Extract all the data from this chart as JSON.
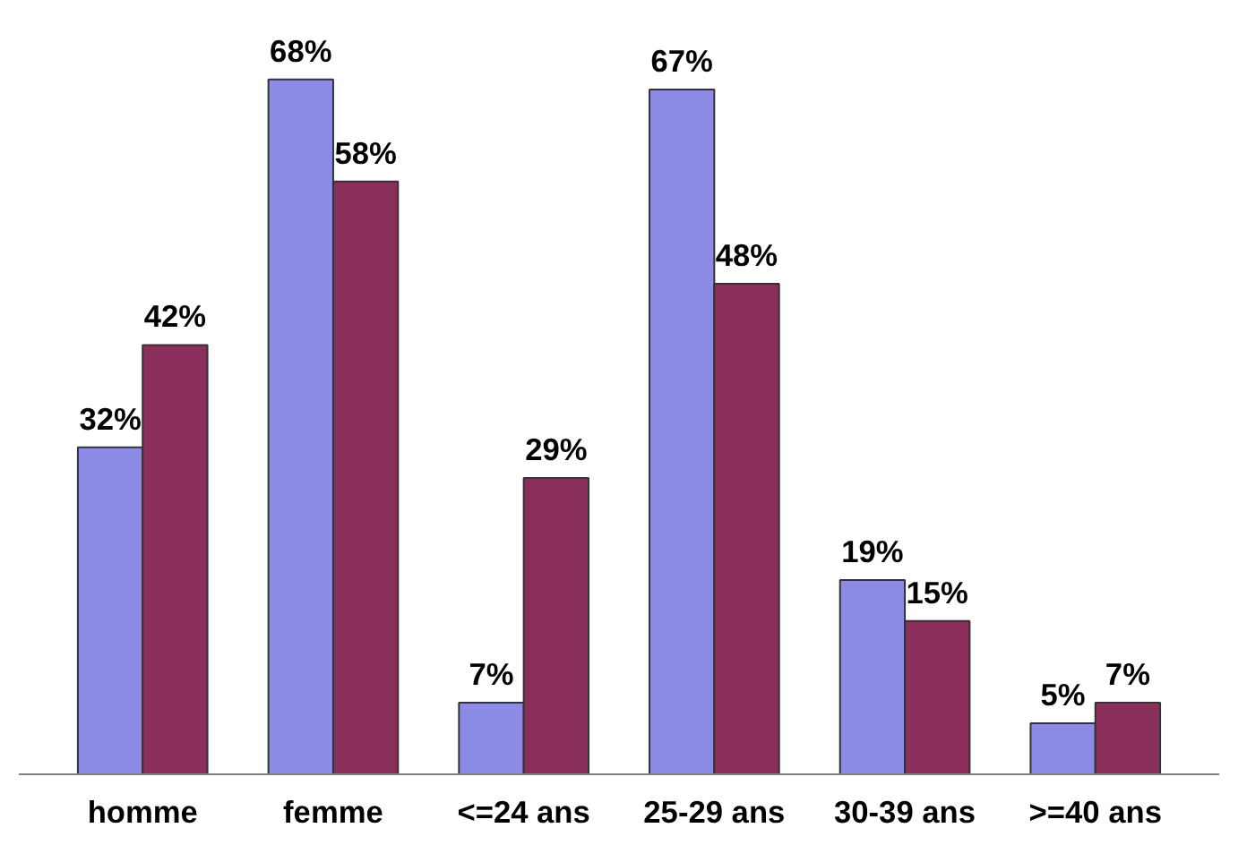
{
  "chart_data": {
    "type": "bar",
    "categories": [
      "homme",
      "femme",
      "<=24 ans",
      "25-29 ans",
      "30-39 ans",
      ">=40 ans"
    ],
    "series": [
      {
        "color": "#8c8ce6",
        "values": [
          32,
          68,
          7,
          67,
          19,
          5
        ],
        "value_labels": [
          "32%",
          "68%",
          "7%",
          "67%",
          "19%",
          "5%"
        ]
      },
      {
        "color": "#8a2e5c",
        "values": [
          42,
          58,
          29,
          48,
          15,
          7
        ],
        "value_labels": [
          "42%",
          "58%",
          "29%",
          "48%",
          "15%",
          "7%"
        ]
      }
    ]
  }
}
